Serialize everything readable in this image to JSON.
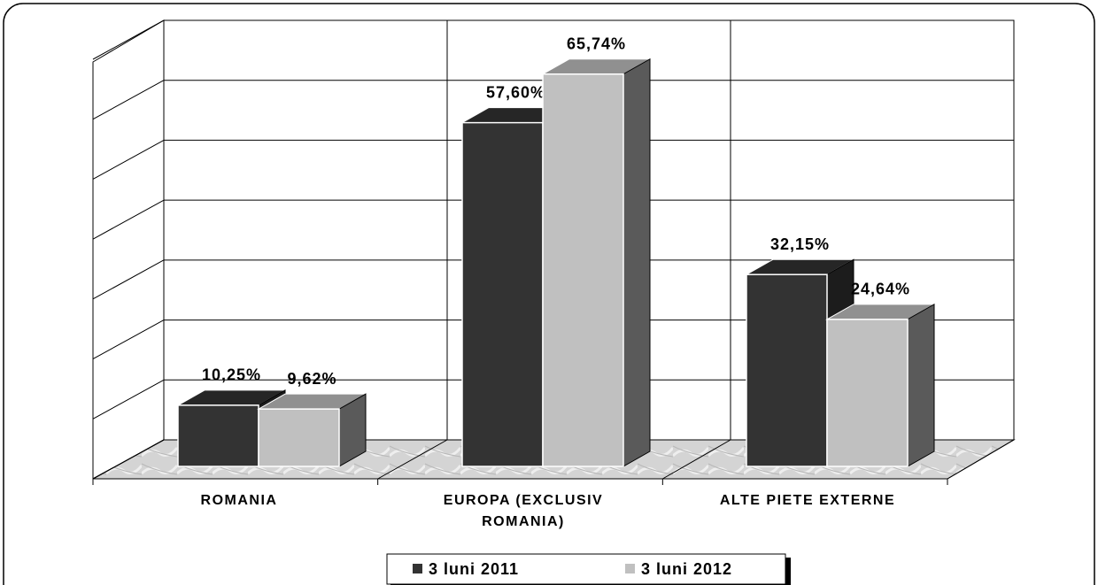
{
  "chart_data": {
    "type": "bar3d",
    "categories": [
      "ROMANIA",
      "EUROPA (EXCLUSIV ROMANIA)",
      "ALTE PIETE EXTERNE"
    ],
    "series": [
      {
        "name": "3 luni 2011",
        "color": "#333333",
        "values": [
          10.25,
          57.6,
          32.15
        ],
        "value_labels": [
          "10,25%",
          "57,60%",
          "32,15%"
        ]
      },
      {
        "name": "3 luni 2012",
        "color": "#c0c0c0",
        "values": [
          9.62,
          65.74,
          24.64
        ],
        "value_labels": [
          "9,62%",
          "65,74%",
          "24,64%"
        ]
      }
    ],
    "ylim": [
      0,
      70
    ],
    "yticks": [
      0,
      10,
      20,
      30,
      40,
      50,
      60,
      70
    ],
    "grid": true,
    "legend": "bottom"
  }
}
